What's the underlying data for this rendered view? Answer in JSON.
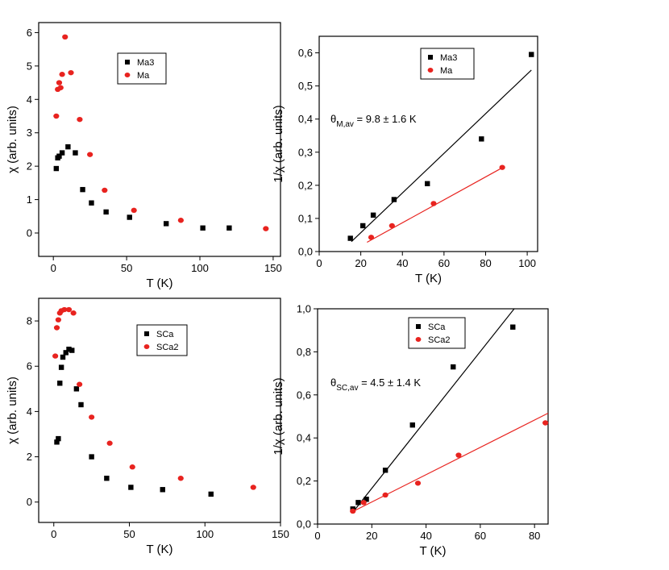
{
  "chart_data": [
    {
      "type": "scatter",
      "xlabel": "T (K)",
      "ylabel": "χ (arb. units)",
      "xlim": [
        -10,
        155
      ],
      "ylim": [
        -0.7,
        6.3
      ],
      "xticks": [
        0,
        50,
        100,
        150
      ],
      "yticks": [
        0,
        1,
        2,
        3,
        4,
        5,
        6
      ],
      "xtick_labels": [
        "0",
        "50",
        "100",
        "150"
      ],
      "ytick_labels": [
        "0",
        "1",
        "2",
        "3",
        "4",
        "5",
        "6"
      ],
      "legend_position": "top-center",
      "series": [
        {
          "name": "Ma3",
          "marker": "square",
          "color": "#000000",
          "x": [
            2,
            3,
            4,
            6,
            10,
            15,
            20,
            26,
            36,
            52,
            77,
            102,
            120
          ],
          "y": [
            1.93,
            2.25,
            2.3,
            2.4,
            2.58,
            2.4,
            1.3,
            0.9,
            0.63,
            0.47,
            0.28,
            0.15,
            0.15
          ]
        },
        {
          "name": "Ma",
          "marker": "circle",
          "color": "#e8231f",
          "x": [
            2,
            3,
            4,
            5,
            6,
            8,
            12,
            18,
            25,
            35,
            55,
            87,
            145
          ],
          "y": [
            3.5,
            4.3,
            4.5,
            4.35,
            4.75,
            5.87,
            4.8,
            3.4,
            2.35,
            1.28,
            0.68,
            0.38,
            0.13
          ]
        }
      ]
    },
    {
      "type": "scatter",
      "xlabel": "T (K)",
      "ylabel": "1/χ (arb. units)",
      "xlim": [
        0,
        105
      ],
      "ylim": [
        0,
        0.65
      ],
      "xticks": [
        0,
        20,
        40,
        60,
        80,
        100
      ],
      "yticks": [
        0,
        0.1,
        0.2,
        0.3,
        0.4,
        0.5,
        0.6
      ],
      "xtick_labels": [
        "0",
        "20",
        "40",
        "60",
        "80",
        "100"
      ],
      "ytick_labels": [
        "0,0",
        "0,1",
        "0,2",
        "0,3",
        "0,4",
        "0,5",
        "0,6"
      ],
      "legend_position": "top-right",
      "annotation": {
        "theta": "θ",
        "subscript": "M,av",
        "rest": " = 9.8 ± 1.6 K"
      },
      "series": [
        {
          "name": "Ma3",
          "marker": "square",
          "color": "#000000",
          "x": [
            15,
            21,
            26,
            36,
            52,
            78,
            102
          ],
          "y": [
            0.04,
            0.078,
            0.11,
            0.157,
            0.205,
            0.34,
            0.595
          ]
        },
        {
          "name": "Ma",
          "marker": "circle",
          "color": "#e8231f",
          "x": [
            25,
            35,
            55,
            88
          ],
          "y": [
            0.043,
            0.078,
            0.145,
            0.254
          ]
        }
      ],
      "fits": [
        {
          "color": "#000000",
          "x": [
            15.5,
            102
          ],
          "y": [
            0.03,
            0.548
          ]
        },
        {
          "color": "#e8231f",
          "x": [
            23,
            88
          ],
          "y": [
            0.028,
            0.253
          ]
        }
      ]
    },
    {
      "type": "scatter",
      "xlabel": "T (K)",
      "ylabel": "χ (arb. units)",
      "xlim": [
        -10,
        150
      ],
      "ylim": [
        -0.9,
        9.0
      ],
      "xticks": [
        0,
        50,
        100,
        150
      ],
      "yticks": [
        0,
        2,
        4,
        6,
        8
      ],
      "xtick_labels": [
        "0",
        "50",
        "100",
        "150"
      ],
      "ytick_labels": [
        "0",
        "2",
        "4",
        "6",
        "8"
      ],
      "legend_position": "top-center",
      "series": [
        {
          "name": "SCa",
          "marker": "square",
          "color": "#000000",
          "x": [
            2,
            3,
            4,
            5,
            6,
            8,
            10,
            12,
            15,
            18,
            25,
            35,
            51,
            72,
            104
          ],
          "y": [
            2.65,
            2.8,
            5.25,
            5.95,
            6.4,
            6.6,
            6.75,
            6.7,
            5.0,
            4.3,
            2.0,
            1.05,
            0.65,
            0.55,
            0.35
          ]
        },
        {
          "name": "SCa2",
          "marker": "circle",
          "color": "#e8231f",
          "x": [
            1,
            2,
            3,
            4,
            5,
            7,
            10,
            13,
            17,
            25,
            37,
            52,
            84,
            132
          ],
          "y": [
            6.45,
            7.7,
            8.05,
            8.35,
            8.45,
            8.5,
            8.5,
            8.35,
            5.2,
            3.75,
            2.6,
            1.55,
            1.05,
            0.65
          ]
        }
      ]
    },
    {
      "type": "scatter",
      "xlabel": "T (K)",
      "ylabel": "1/χ (arb. units)",
      "xlim": [
        0,
        85
      ],
      "ylim": [
        0,
        1.0
      ],
      "xticks": [
        0,
        20,
        40,
        60,
        80
      ],
      "yticks": [
        0,
        0.2,
        0.4,
        0.6,
        0.8,
        1.0
      ],
      "xtick_labels": [
        "0",
        "20",
        "40",
        "60",
        "80"
      ],
      "ytick_labels": [
        "0,0",
        "0,2",
        "0,4",
        "0,6",
        "0,8",
        "1,0"
      ],
      "legend_position": "top-right",
      "annotation": {
        "theta": "θ",
        "subscript": "SC,av",
        "rest": " = 4.5 ± 1.4 K"
      },
      "series": [
        {
          "name": "SCa",
          "marker": "square",
          "color": "#000000",
          "x": [
            13,
            15,
            18,
            25,
            35,
            50,
            72
          ],
          "y": [
            0.07,
            0.1,
            0.115,
            0.25,
            0.46,
            0.73,
            0.915
          ]
        },
        {
          "name": "SCa2",
          "marker": "circle",
          "color": "#e8231f",
          "x": [
            13,
            17,
            25,
            37,
            52,
            84
          ],
          "y": [
            0.06,
            0.1,
            0.135,
            0.19,
            0.32,
            0.47
          ]
        }
      ],
      "fits": [
        {
          "color": "#000000",
          "x": [
            13,
            72.5
          ],
          "y": [
            0.055,
            1.0
          ]
        },
        {
          "color": "#e8231f",
          "x": [
            13,
            85
          ],
          "y": [
            0.058,
            0.515
          ]
        }
      ]
    }
  ]
}
